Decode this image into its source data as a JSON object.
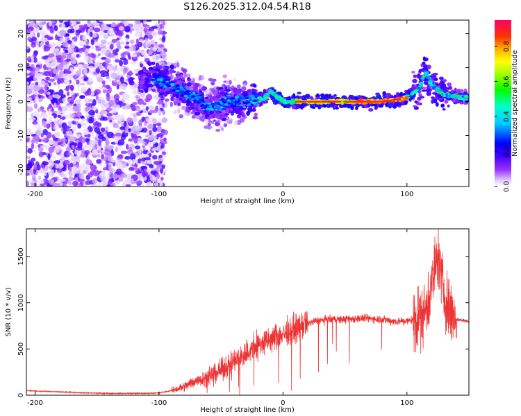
{
  "title": "S126.2025.312.04.54.R18",
  "chart_data": [
    {
      "type": "heatmap",
      "xlabel": "Height of straight line (km)",
      "ylabel": "Frequency (Hz)",
      "xlim": [
        -207,
        150
      ],
      "ylim": [
        -25,
        24
      ],
      "xticks": [
        -200,
        -100,
        0,
        100
      ],
      "yticks": [
        -20,
        -10,
        0,
        10,
        20
      ],
      "colorbar": {
        "label": "Normalized spectral amplitude",
        "range": [
          0,
          0.95
        ],
        "ticks": [
          "0.0",
          "0.2",
          "0.4",
          "0.6",
          "0.8"
        ],
        "colormap": [
          "#ffffff",
          "#cc88ff",
          "#7700ff",
          "#0000ff",
          "#00ffff",
          "#00ff00",
          "#ffff00",
          "#ff8800",
          "#ff0000",
          "#ff0066"
        ]
      },
      "ridge": [
        [
          -105,
          7
        ],
        [
          -90,
          5
        ],
        [
          -80,
          3
        ],
        [
          -70,
          1
        ],
        [
          -60,
          -2
        ],
        [
          -45,
          0
        ],
        [
          -30,
          0
        ],
        [
          -15,
          1
        ],
        [
          -10,
          3
        ],
        [
          0,
          0
        ],
        [
          20,
          0
        ],
        [
          40,
          0
        ],
        [
          60,
          0
        ],
        [
          80,
          0
        ],
        [
          100,
          1
        ],
        [
          110,
          4
        ],
        [
          115,
          9
        ],
        [
          120,
          5
        ],
        [
          130,
          2
        ],
        [
          150,
          1
        ]
      ]
    },
    {
      "type": "line",
      "xlabel": "Height of straight line (km)",
      "ylabel": "SNR (10 * v/v)",
      "xlim": [
        -207,
        150
      ],
      "ylim": [
        0,
        1800
      ],
      "xticks": [
        -200,
        -100,
        0,
        100
      ],
      "yticks": [
        0,
        500,
        1000,
        1500
      ],
      "series_color": "#ee3333",
      "x": [
        -207,
        -180,
        -160,
        -140,
        -120,
        -110,
        -100,
        -90,
        -80,
        -70,
        -60,
        -50,
        -40,
        -30,
        -20,
        -10,
        0,
        10,
        20,
        30,
        40,
        50,
        60,
        70,
        80,
        90,
        100,
        105,
        110,
        115,
        120,
        125,
        130,
        135,
        140,
        150
      ],
      "values": [
        50,
        35,
        25,
        20,
        20,
        20,
        25,
        50,
        90,
        160,
        200,
        270,
        360,
        450,
        540,
        600,
        660,
        720,
        780,
        810,
        820,
        820,
        830,
        830,
        820,
        800,
        800,
        820,
        850,
        900,
        1200,
        1500,
        1100,
        900,
        820,
        800
      ]
    }
  ]
}
